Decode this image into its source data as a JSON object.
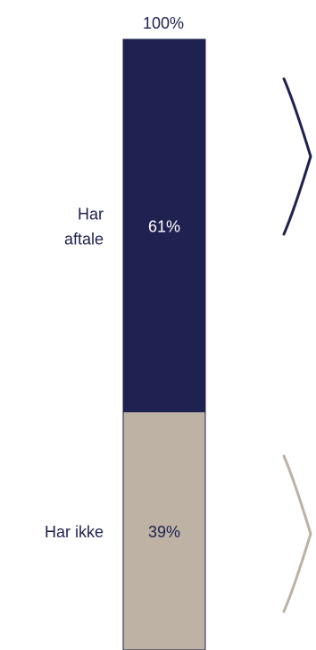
{
  "chart_data": {
    "type": "bar",
    "stacked": true,
    "total_label": "100%",
    "categories": [
      "Har aftale",
      "Har ikke"
    ],
    "values": [
      61,
      39
    ],
    "value_labels": [
      "61%",
      "39%"
    ],
    "category_labels": [
      [
        "Har",
        "aftale"
      ],
      [
        "Har ikke"
      ]
    ],
    "ylim": [
      0,
      100
    ],
    "colors": [
      "#1f2150",
      "#bdb2a4"
    ],
    "label_colors": [
      "#ffffff",
      "#1f2150"
    ],
    "side_text_color": "#1f2150",
    "brace_colors": [
      "#1f2150",
      "#bdb2a4"
    ],
    "legend": false,
    "grid": false
  }
}
